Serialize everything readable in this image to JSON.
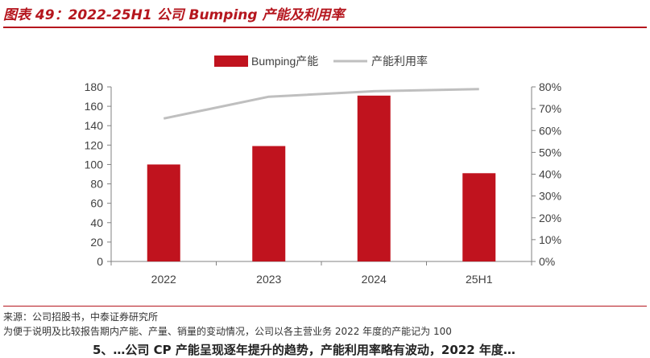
{
  "title": "图表 49：2022-25H1 公司 Bumping 产能及利用率",
  "notes": [
    "来源：公司招股书，中泰证券研究所",
    "为便于说明及比较报告期内产能、产量、销量的变动情况，公司以各主营业务 2022 年度的产能记为 100"
  ],
  "cut_text": "5、…公司 CP 产能呈现逐年提升的趋势，产能利用率略有波动，2022 年度…",
  "colors": {
    "title": "#b5161e",
    "bar": "#c0131e",
    "line": "#bfbfbf",
    "axis": "#808080"
  },
  "chart_data": {
    "type": "bar+line",
    "categories": [
      "2022",
      "2023",
      "2024",
      "25H1"
    ],
    "series": [
      {
        "name": "Bumping产能",
        "type": "bar",
        "axis": "left",
        "values": [
          100,
          119,
          171,
          91
        ]
      },
      {
        "name": "产能利用率",
        "type": "line",
        "axis": "right",
        "values": [
          0.655,
          0.755,
          0.78,
          0.79
        ]
      }
    ],
    "y_left": {
      "lim": [
        0,
        180
      ],
      "ticks": [
        0,
        20,
        40,
        60,
        80,
        100,
        120,
        140,
        160,
        180
      ]
    },
    "y_right": {
      "lim": [
        0,
        0.8
      ],
      "ticks": [
        0,
        0.1,
        0.2,
        0.3,
        0.4,
        0.5,
        0.6,
        0.7,
        0.8
      ],
      "tick_labels": [
        "0%",
        "10%",
        "20%",
        "30%",
        "40%",
        "50%",
        "60%",
        "70%",
        "80%"
      ]
    },
    "legend_position": "top-center",
    "grid": false
  }
}
